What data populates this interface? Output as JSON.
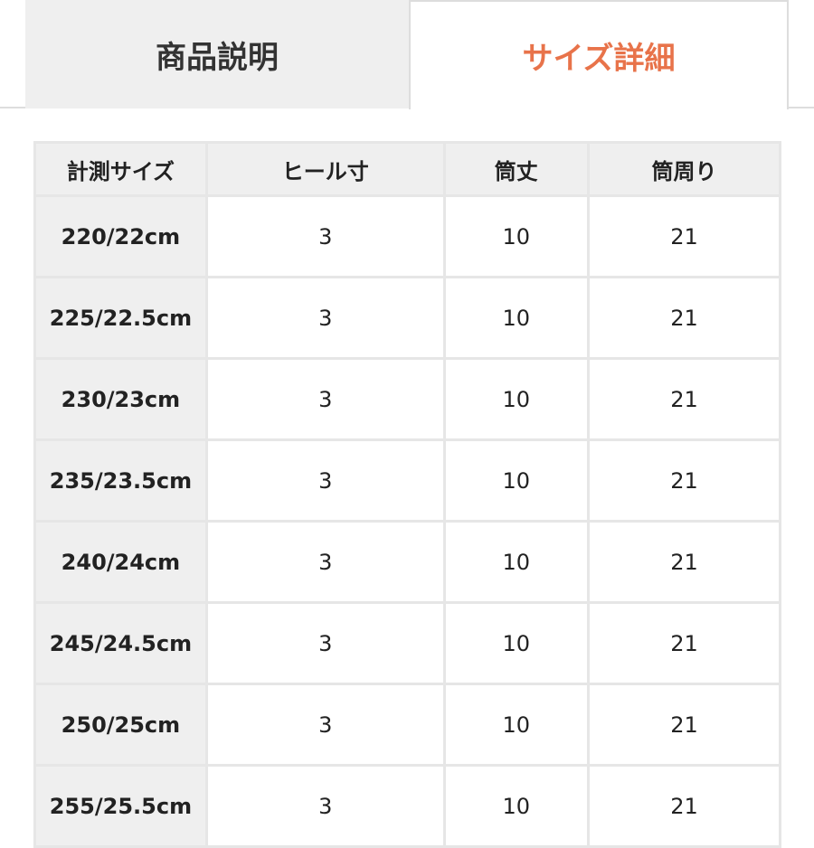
{
  "tabs": [
    {
      "label": "商品説明",
      "active": false
    },
    {
      "label": "サイズ詳細",
      "active": true
    }
  ],
  "colors": {
    "accent": "#e8734a",
    "header_bg": "#efefef",
    "border": "#e6e6e6"
  },
  "table": {
    "headers": [
      "計測サイズ",
      "ヒール寸",
      "筒丈",
      "筒周り"
    ],
    "rows": [
      [
        "220/22cm",
        "3",
        "10",
        "21"
      ],
      [
        "225/22.5cm",
        "3",
        "10",
        "21"
      ],
      [
        "230/23cm",
        "3",
        "10",
        "21"
      ],
      [
        "235/23.5cm",
        "3",
        "10",
        "21"
      ],
      [
        "240/24cm",
        "3",
        "10",
        "21"
      ],
      [
        "245/24.5cm",
        "3",
        "10",
        "21"
      ],
      [
        "250/25cm",
        "3",
        "10",
        "21"
      ],
      [
        "255/25.5cm",
        "3",
        "10",
        "21"
      ]
    ]
  }
}
